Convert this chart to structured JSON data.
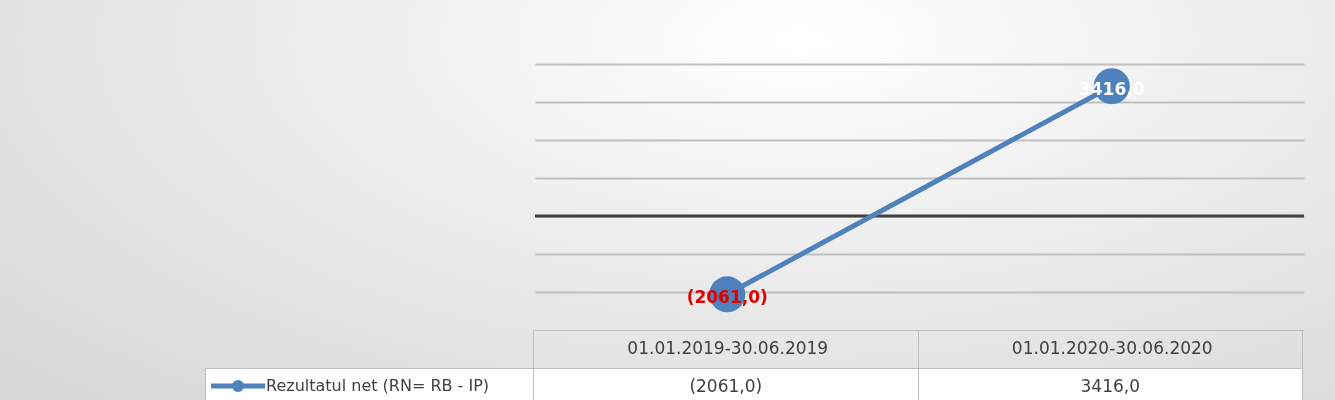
{
  "chart_data": {
    "type": "line",
    "categories": [
      "01.01.2019-30.06.2019",
      "01.01.2020-30.06.2020"
    ],
    "series": [
      {
        "name": "Rezultatul net (RN= RB - IP)",
        "color": "#4f81bd",
        "values": [
          -2061.0,
          3416.0
        ],
        "value_labels": [
          "(2061,0)",
          "3416,0"
        ]
      }
    ],
    "ylim": [
      -3000,
      4000
    ],
    "yticks": [
      {
        "value": -2000,
        "label": null
      },
      {
        "value": -1000,
        "label": null
      },
      {
        "value": 0,
        "label": null
      },
      {
        "value": 1000,
        "label": null
      },
      {
        "value": 2000,
        "label": null
      },
      {
        "value": 3000,
        "label": null
      },
      {
        "value": 4000,
        "label": null
      }
    ],
    "ref_lines": [
      {
        "axis": "y",
        "value": 0,
        "color": "#404040"
      }
    ],
    "grid": "y",
    "tick_labels": "x",
    "marker": "circle",
    "legend": "bottom left",
    "line_style": "solid"
  }
}
